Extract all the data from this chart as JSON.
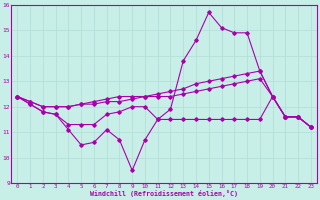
{
  "xlabel": "Windchill (Refroidissement éolien,°C)",
  "xlim": [
    -0.5,
    23.5
  ],
  "ylim": [
    9,
    16
  ],
  "yticks": [
    9,
    10,
    11,
    12,
    13,
    14,
    15,
    16
  ],
  "xticks": [
    0,
    1,
    2,
    3,
    4,
    5,
    6,
    7,
    8,
    9,
    10,
    11,
    12,
    13,
    14,
    15,
    16,
    17,
    18,
    19,
    20,
    21,
    22,
    23
  ],
  "bg_color": "#c8eee8",
  "grid_color": "#b0ddd8",
  "line_color": "#aa00aa",
  "series": [
    [
      12.4,
      12.1,
      11.8,
      11.7,
      11.1,
      10.5,
      10.6,
      11.1,
      10.7,
      9.5,
      10.7,
      11.5,
      11.9,
      13.8,
      14.6,
      15.7,
      15.1,
      14.9,
      14.9,
      13.4,
      12.4,
      11.6,
      11.6,
      11.2
    ],
    [
      12.4,
      12.1,
      11.8,
      11.7,
      11.3,
      11.3,
      11.3,
      11.7,
      11.8,
      12.0,
      12.0,
      11.5,
      11.5,
      11.5,
      11.5,
      11.5,
      11.5,
      11.5,
      11.5,
      11.5,
      12.4,
      11.6,
      11.6,
      11.2
    ],
    [
      12.4,
      12.2,
      12.0,
      12.0,
      12.0,
      12.1,
      12.1,
      12.2,
      12.2,
      12.3,
      12.4,
      12.5,
      12.6,
      12.7,
      12.9,
      13.0,
      13.1,
      13.2,
      13.3,
      13.4,
      12.4,
      11.6,
      11.6,
      11.2
    ],
    [
      12.4,
      12.2,
      12.0,
      12.0,
      12.0,
      12.1,
      12.2,
      12.3,
      12.4,
      12.4,
      12.4,
      12.4,
      12.4,
      12.5,
      12.6,
      12.7,
      12.8,
      12.9,
      13.0,
      13.1,
      12.4,
      11.6,
      11.6,
      11.2
    ]
  ]
}
